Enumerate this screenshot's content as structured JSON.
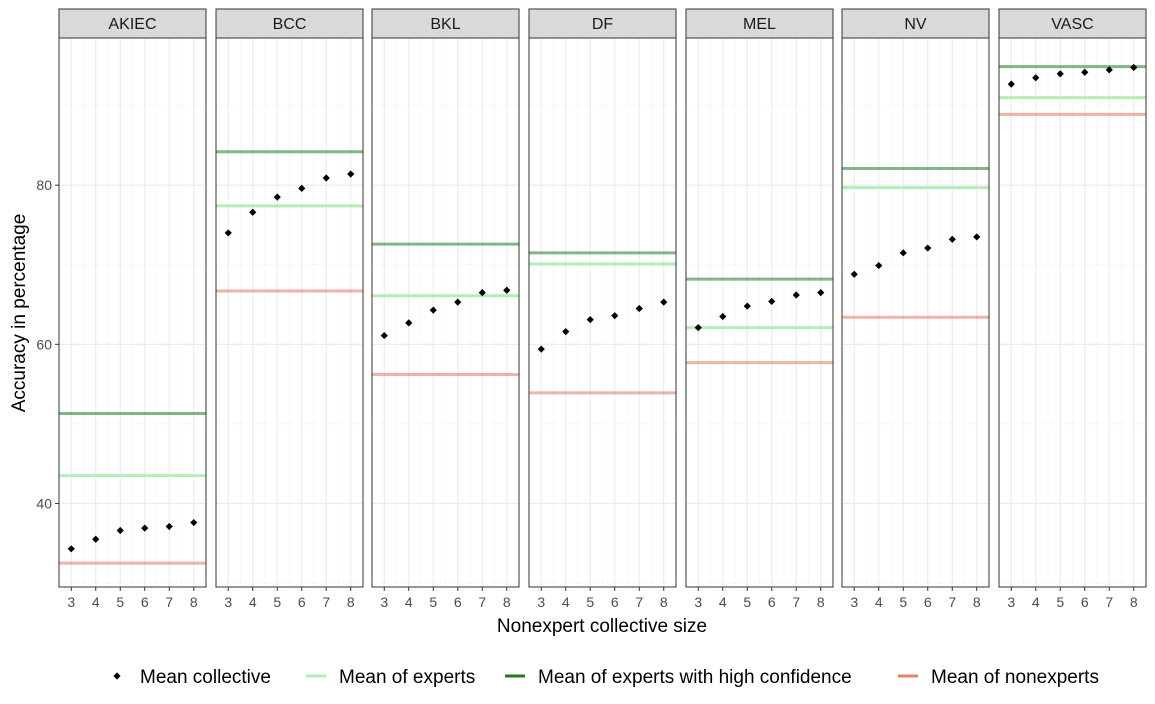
{
  "chart_data": {
    "type": "scatter",
    "facets": [
      "AKIEC",
      "BCC",
      "BKL",
      "DF",
      "MEL",
      "NV",
      "VASC"
    ],
    "x": [
      3,
      4,
      5,
      6,
      7,
      8
    ],
    "x_tick_labels": [
      "3",
      "4",
      "5",
      "6",
      "7",
      "8"
    ],
    "xlabel": "Nonexpert collective size",
    "ylabel": "Accuracy in percentage",
    "ylim": [
      29.5,
      98.5
    ],
    "y_ticks": [
      40,
      60,
      80
    ],
    "y_tick_labels": [
      "40",
      "60",
      "80"
    ],
    "grid": true,
    "legend_position": "bottom",
    "series": [
      {
        "name": "Mean collective",
        "kind": "points",
        "color": "#000000",
        "values": {
          "AKIEC": [
            34.3,
            35.5,
            36.6,
            36.9,
            37.1,
            37.6
          ],
          "BCC": [
            74.0,
            76.6,
            78.5,
            79.6,
            80.9,
            81.4
          ],
          "BKL": [
            61.1,
            62.7,
            64.3,
            65.3,
            66.5,
            66.8
          ],
          "DF": [
            59.4,
            61.6,
            63.1,
            63.6,
            64.5,
            65.3
          ],
          "MEL": [
            62.1,
            63.5,
            64.8,
            65.4,
            66.2,
            66.5
          ],
          "NV": [
            68.8,
            69.9,
            71.5,
            72.1,
            73.2,
            73.5
          ],
          "VASC": [
            92.7,
            93.5,
            94.0,
            94.2,
            94.5,
            94.8
          ]
        }
      },
      {
        "name": "Mean of experts",
        "kind": "hline",
        "color": "#b4eeb4",
        "values": {
          "AKIEC": 43.5,
          "BCC": 77.4,
          "BKL": 66.1,
          "DF": 70.1,
          "MEL": 62.1,
          "NV": 79.7,
          "VASC": 91.0
        }
      },
      {
        "name": "Mean of experts with high confidence",
        "kind": "hline",
        "color": "#1e7a1e",
        "line_opacity": 0.55,
        "values": {
          "AKIEC": 51.3,
          "BCC": 84.2,
          "BKL": 72.6,
          "DF": 71.5,
          "MEL": 68.2,
          "NV": 82.1,
          "VASC": 94.9
        }
      },
      {
        "name": "Mean of nonexperts",
        "kind": "hline",
        "color": "#e8806a",
        "line_opacity": 0.6,
        "values": {
          "AKIEC": 32.5,
          "BCC": 66.7,
          "BKL": 56.2,
          "DF": 53.9,
          "MEL": 57.7,
          "NV": 63.4,
          "VASC": 88.9
        }
      }
    ]
  }
}
